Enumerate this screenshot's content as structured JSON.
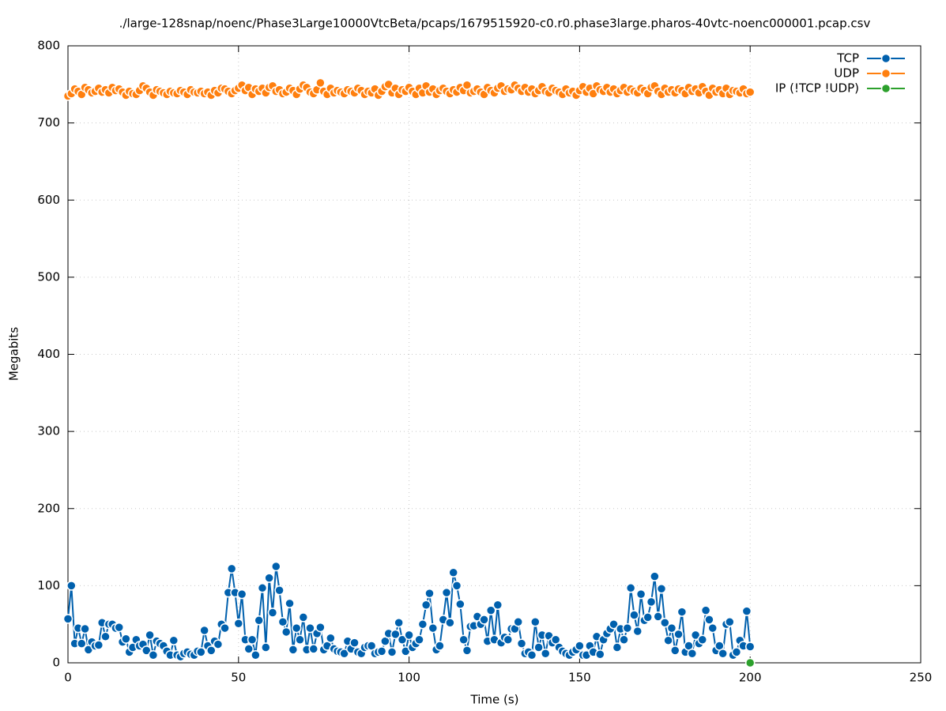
{
  "chart_data": {
    "type": "line",
    "title": "./large-128snap/noenc/Phase3Large10000VtcBeta/pcaps/1679515920-c0.r0.phase3large.pharos-40vtc-noenc000001.pcap.csv",
    "x_label": "Time (s)",
    "y_label": "Megabits",
    "xlim": [
      0,
      250
    ],
    "xticks": [
      0,
      50,
      100,
      150,
      200,
      250
    ],
    "ylim": [
      0,
      800
    ],
    "yticks": [
      0,
      100,
      200,
      300,
      400,
      500,
      600,
      700,
      800
    ],
    "grid": true,
    "legend": "top-right",
    "x": [
      0,
      1,
      2,
      3,
      4,
      5,
      6,
      7,
      8,
      9,
      10,
      11,
      12,
      13,
      14,
      15,
      16,
      17,
      18,
      19,
      20,
      21,
      22,
      23,
      24,
      25,
      26,
      27,
      28,
      29,
      30,
      31,
      32,
      33,
      34,
      35,
      36,
      37,
      38,
      39,
      40,
      41,
      42,
      43,
      44,
      45,
      46,
      47,
      48,
      49,
      50,
      51,
      52,
      53,
      54,
      55,
      56,
      57,
      58,
      59,
      60,
      61,
      62,
      63,
      64,
      65,
      66,
      67,
      68,
      69,
      70,
      71,
      72,
      73,
      74,
      75,
      76,
      77,
      78,
      79,
      80,
      81,
      82,
      83,
      84,
      85,
      86,
      87,
      88,
      89,
      90,
      91,
      92,
      93,
      94,
      95,
      96,
      97,
      98,
      99,
      100,
      101,
      102,
      103,
      104,
      105,
      106,
      107,
      108,
      109,
      110,
      111,
      112,
      113,
      114,
      115,
      116,
      117,
      118,
      119,
      120,
      121,
      122,
      123,
      124,
      125,
      126,
      127,
      128,
      129,
      130,
      131,
      132,
      133,
      134,
      135,
      136,
      137,
      138,
      139,
      140,
      141,
      142,
      143,
      144,
      145,
      146,
      147,
      148,
      149,
      150,
      151,
      152,
      153,
      154,
      155,
      156,
      157,
      158,
      159,
      160,
      161,
      162,
      163,
      164,
      165,
      166,
      167,
      168,
      169,
      170,
      171,
      172,
      173,
      174,
      175,
      176,
      177,
      178,
      179,
      180,
      181,
      182,
      183,
      184,
      185,
      186,
      187,
      188,
      189,
      190,
      191,
      192,
      193,
      194,
      195,
      196,
      197,
      198,
      199,
      200
    ],
    "series": [
      {
        "name": "TCP",
        "color": "#0060ad",
        "values": [
          57,
          100,
          25,
          45,
          25,
          44,
          17,
          27,
          22,
          23,
          52,
          34,
          50,
          50,
          45,
          46,
          27,
          31,
          14,
          20,
          30,
          22,
          24,
          16,
          36,
          10,
          28,
          25,
          22,
          15,
          10,
          29,
          10,
          8,
          12,
          14,
          11,
          10,
          15,
          14,
          42,
          22,
          16,
          28,
          24,
          50,
          45,
          91,
          122,
          91,
          51,
          89,
          30,
          18,
          30,
          10,
          55,
          97,
          20,
          110,
          65,
          125,
          94,
          53,
          40,
          77,
          17,
          45,
          30,
          59,
          17,
          45,
          18,
          38,
          46,
          17,
          22,
          32,
          18,
          15,
          14,
          12,
          28,
          18,
          26,
          14,
          12,
          20,
          22,
          22,
          12,
          14,
          15,
          28,
          38,
          14,
          37,
          52,
          30,
          15,
          36,
          20,
          25,
          30,
          50,
          75,
          90,
          45,
          17,
          22,
          56,
          91,
          52,
          117,
          100,
          76,
          30,
          16,
          47,
          48,
          60,
          50,
          56,
          28,
          68,
          30,
          75,
          26,
          33,
          30,
          44,
          44,
          53,
          25,
          12,
          14,
          10,
          53,
          20,
          36,
          12,
          35,
          26,
          30,
          20,
          15,
          12,
          10,
          14,
          17,
          22,
          10,
          10,
          22,
          14,
          34,
          11,
          30,
          38,
          44,
          50,
          20,
          44,
          30,
          45,
          97,
          62,
          41,
          89,
          55,
          59,
          79,
          112,
          60,
          96,
          52,
          29,
          45,
          16,
          37,
          66,
          14,
          22,
          12,
          36,
          25,
          30,
          68,
          56,
          45,
          16,
          22,
          12,
          50,
          53,
          10,
          14,
          29,
          22,
          67,
          21
        ]
      },
      {
        "name": "UDP",
        "color": "#ff7f0e",
        "values": [
          735,
          738,
          744,
          741,
          737,
          746,
          743,
          739,
          741,
          745,
          740,
          743,
          739,
          746,
          742,
          744,
          740,
          736,
          741,
          738,
          737,
          742,
          748,
          745,
          740,
          736,
          743,
          741,
          739,
          737,
          741,
          739,
          738,
          742,
          740,
          737,
          743,
          740,
          739,
          741,
          738,
          740,
          736,
          742,
          739,
          745,
          744,
          741,
          738,
          742,
          745,
          749,
          742,
          746,
          737,
          744,
          741,
          745,
          739,
          746,
          748,
          741,
          743,
          738,
          740,
          745,
          742,
          737,
          744,
          749,
          746,
          740,
          738,
          743,
          752,
          741,
          737,
          745,
          739,
          742,
          740,
          738,
          743,
          741,
          739,
          745,
          742,
          737,
          741,
          739,
          744,
          736,
          741,
          747,
          750,
          739,
          745,
          737,
          743,
          741,
          746,
          741,
          737,
          745,
          739,
          748,
          740,
          744,
          737,
          742,
          745,
          741,
          738,
          743,
          740,
          746,
          742,
          749,
          739,
          741,
          744,
          740,
          737,
          746,
          742,
          739,
          745,
          748,
          741,
          744,
          743,
          749,
          745,
          741,
          746,
          740,
          744,
          738,
          742,
          747,
          741,
          739,
          745,
          742,
          740,
          737,
          744,
          739,
          741,
          736,
          742,
          747,
          740,
          745,
          738,
          748,
          743,
          741,
          746,
          740,
          744,
          738,
          742,
          746,
          740,
          744,
          741,
          739,
          745,
          742,
          738,
          746,
          748,
          741,
          737,
          745,
          740,
          743,
          739,
          744,
          742,
          738,
          746,
          741,
          744,
          739,
          747,
          741,
          736,
          745,
          740,
          743,
          738,
          745,
          737,
          742,
          741,
          739,
          744,
          738,
          740
        ]
      },
      {
        "name": "IP (!TCP  !UDP)",
        "color": "#2ca02c",
        "x": [
          200
        ],
        "values": [
          0
        ]
      }
    ]
  }
}
